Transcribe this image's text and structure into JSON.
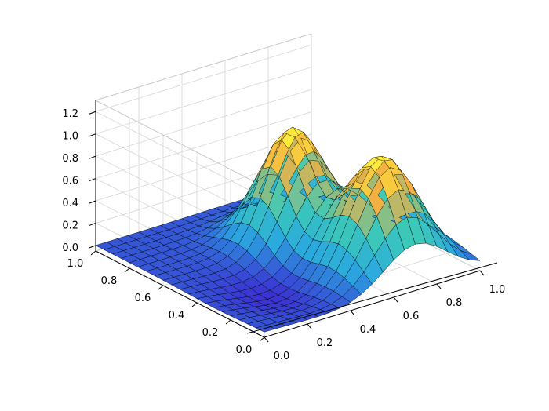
{
  "chart_data": {
    "type": "surface3d",
    "title": "",
    "xlabel": "",
    "ylabel": "",
    "zlabel": "",
    "grid": true,
    "xlim": [
      0.0,
      1.0
    ],
    "ylim": [
      0.0,
      1.0
    ],
    "zlim": [
      -0.05,
      1.3
    ],
    "x_ticks": [
      "0.0",
      "0.2",
      "0.4",
      "0.6",
      "0.8",
      "1.0"
    ],
    "y_ticks": [
      "0.0",
      "0.2",
      "0.4",
      "0.6",
      "0.8",
      "1.0"
    ],
    "z_ticks": [
      "0.0",
      "0.2",
      "0.4",
      "0.6",
      "0.8",
      "1.0",
      "1.2"
    ],
    "colormap": [
      "#3b30d2",
      "#2aa8e0",
      "#3cc9b8",
      "#f5b041",
      "#ffff3c"
    ],
    "grid_resolution": 21,
    "surface": {
      "function": "z = exp(-((x-0.6)^2+(y-0.6)^2)/0.03) + exp(-((x-0.7)^2+(y-0.2)^2)/0.04) - 0.1*exp(-((x-0.3)^2+(y-0.3)^2)/0.05)",
      "x_range": [
        0.0,
        1.0
      ],
      "y_range": [
        0.0,
        1.0
      ],
      "peaks": [
        {
          "x": 0.6,
          "y": 0.6,
          "z": 1.0
        },
        {
          "x": 0.7,
          "y": 0.2,
          "z": 1.0
        }
      ]
    }
  }
}
